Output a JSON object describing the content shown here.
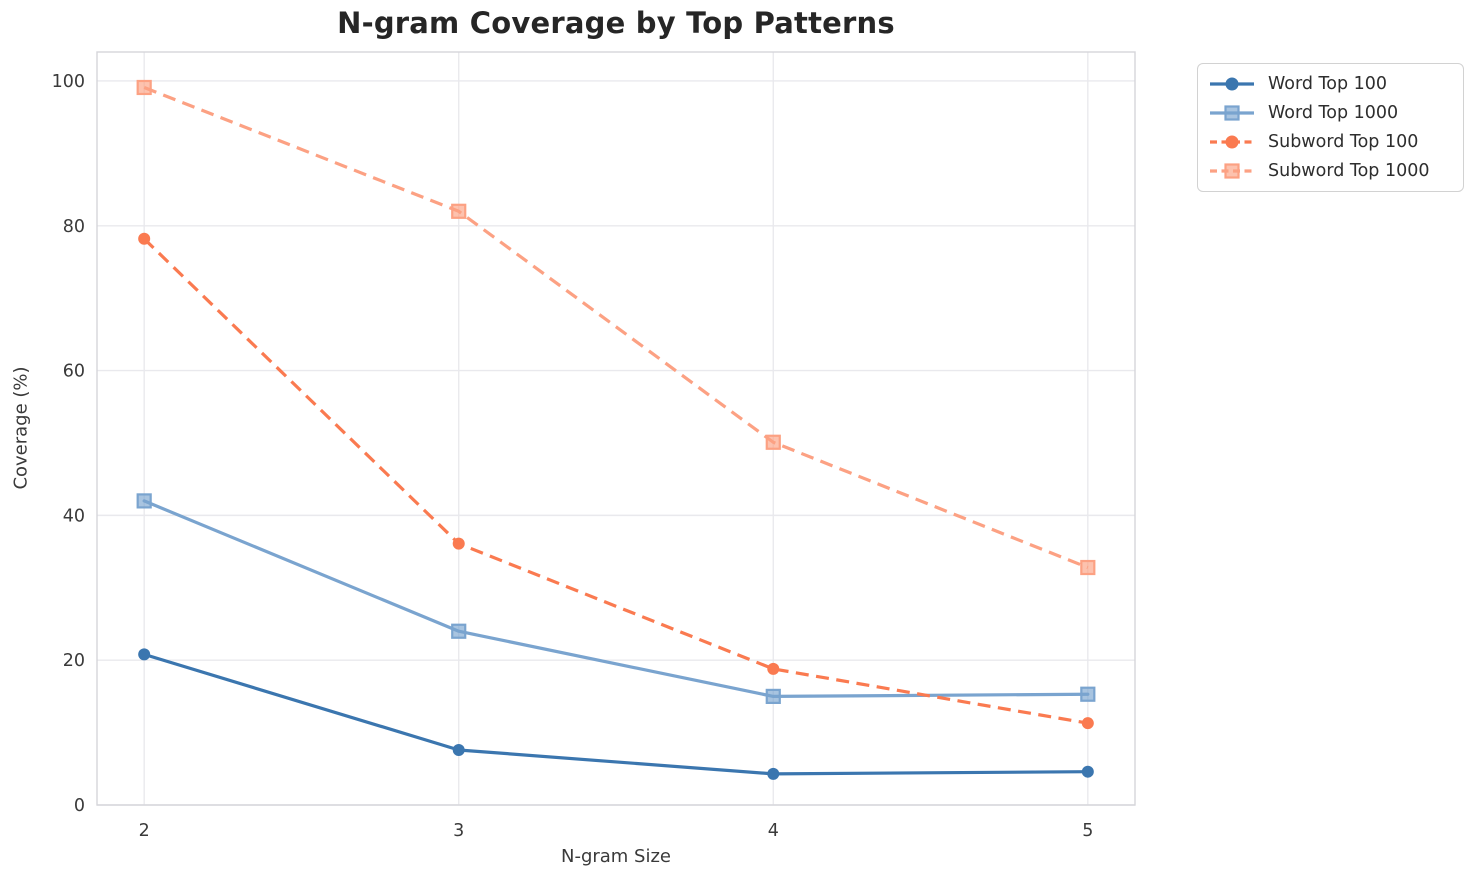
{
  "chart_data": {
    "type": "line",
    "title": "N-gram Coverage by Top Patterns",
    "xlabel": "N-gram Size",
    "ylabel": "Coverage (%)",
    "x": [
      2,
      3,
      4,
      5
    ],
    "x_tick_labels": [
      "2",
      "3",
      "4",
      "5"
    ],
    "y_ticks": [
      0,
      20,
      40,
      60,
      80,
      100
    ],
    "xlim": [
      1.85,
      5.15
    ],
    "ylim": [
      0,
      104
    ],
    "grid": true,
    "legend_position": "outside-upper-right",
    "series": [
      {
        "name": "Word Top 100",
        "values": [
          20.8,
          7.6,
          4.3,
          4.6
        ],
        "color": "#3b76af",
        "style": "solid",
        "marker": "circle"
      },
      {
        "name": "Word Top 1000",
        "values": [
          42.0,
          24.0,
          15.0,
          15.3
        ],
        "color": "#7aa4cf",
        "style": "solid",
        "marker": "square"
      },
      {
        "name": "Subword Top 100",
        "values": [
          78.2,
          36.1,
          18.8,
          11.3
        ],
        "color": "#fa7a50",
        "style": "dashed",
        "marker": "circle"
      },
      {
        "name": "Subword Top 1000",
        "values": [
          99.1,
          82.0,
          50.1,
          32.8
        ],
        "color": "#fca183",
        "style": "dashed",
        "marker": "square"
      }
    ],
    "colors": {
      "background": "#ffffff",
      "grid": "#e9e9ed",
      "plot_border": "#d5d5da",
      "tick_text": "#3a3a3a",
      "title_text": "#262626"
    }
  }
}
